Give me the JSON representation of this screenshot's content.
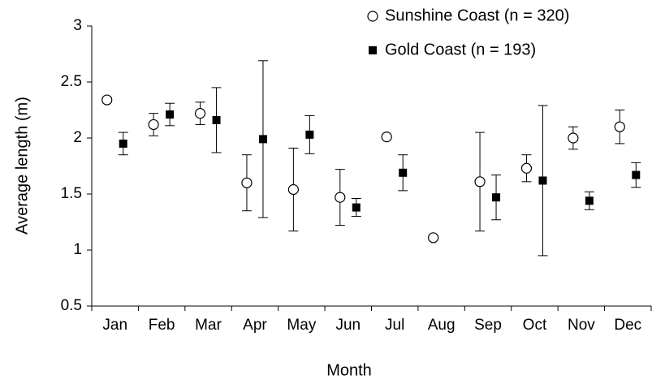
{
  "chart_data": {
    "type": "errorbar",
    "x_label": "Month",
    "y_label": "Average length (m)",
    "categories": [
      "Jan",
      "Feb",
      "Mar",
      "Apr",
      "May",
      "Jun",
      "Jul",
      "Aug",
      "Sep",
      "Oct",
      "Nov",
      "Dec"
    ],
    "series": [
      {
        "name": "Sunshine Coast (n = 320)",
        "color": "#000000",
        "marker": "open-circle",
        "values": [
          2.34,
          2.12,
          2.22,
          1.6,
          1.54,
          1.47,
          2.01,
          1.11,
          1.61,
          1.73,
          2.0,
          2.1
        ],
        "errors": [
          0.02,
          0.1,
          0.1,
          0.25,
          0.37,
          0.25,
          0.01,
          null,
          0.44,
          0.12,
          0.1,
          0.15
        ]
      },
      {
        "name": "Gold Coast (n = 193)",
        "color": "#000000",
        "marker": "filled-square",
        "values": [
          1.95,
          2.21,
          2.16,
          1.99,
          2.03,
          1.38,
          1.69,
          null,
          1.47,
          1.62,
          1.44,
          1.67
        ],
        "errors": [
          0.1,
          0.1,
          0.29,
          0.7,
          0.17,
          0.08,
          0.16,
          null,
          0.2,
          0.67,
          0.08,
          0.11
        ]
      }
    ],
    "ylim": [
      0.5,
      3
    ],
    "yticks": [
      0.5,
      1,
      1.5,
      2,
      2.5,
      3
    ],
    "grid": false,
    "legend": "top-right"
  }
}
